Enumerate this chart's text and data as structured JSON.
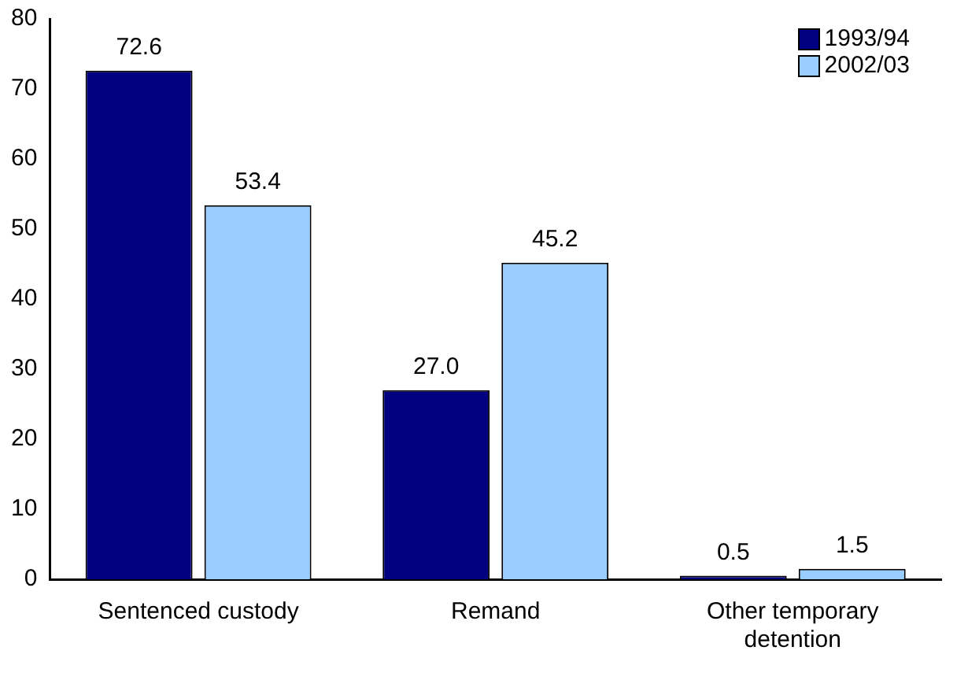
{
  "chart_data": {
    "type": "bar",
    "categories": [
      "Sentenced custody",
      "Remand",
      "Other temporary detention"
    ],
    "series": [
      {
        "name": "1993/94",
        "color": "#000080",
        "values": [
          72.6,
          27.0,
          0.5
        ],
        "value_labels": [
          "72.6",
          "27.0",
          "0.5"
        ]
      },
      {
        "name": "2002/03",
        "color": "#99ccff",
        "values": [
          53.4,
          45.2,
          1.5
        ],
        "value_labels": [
          "53.4",
          "45.2",
          "1.5"
        ]
      }
    ],
    "ylim": [
      0,
      80
    ],
    "yticks": [
      0,
      10,
      20,
      30,
      40,
      50,
      60,
      70,
      80
    ],
    "grid": false,
    "legend": "top right"
  }
}
